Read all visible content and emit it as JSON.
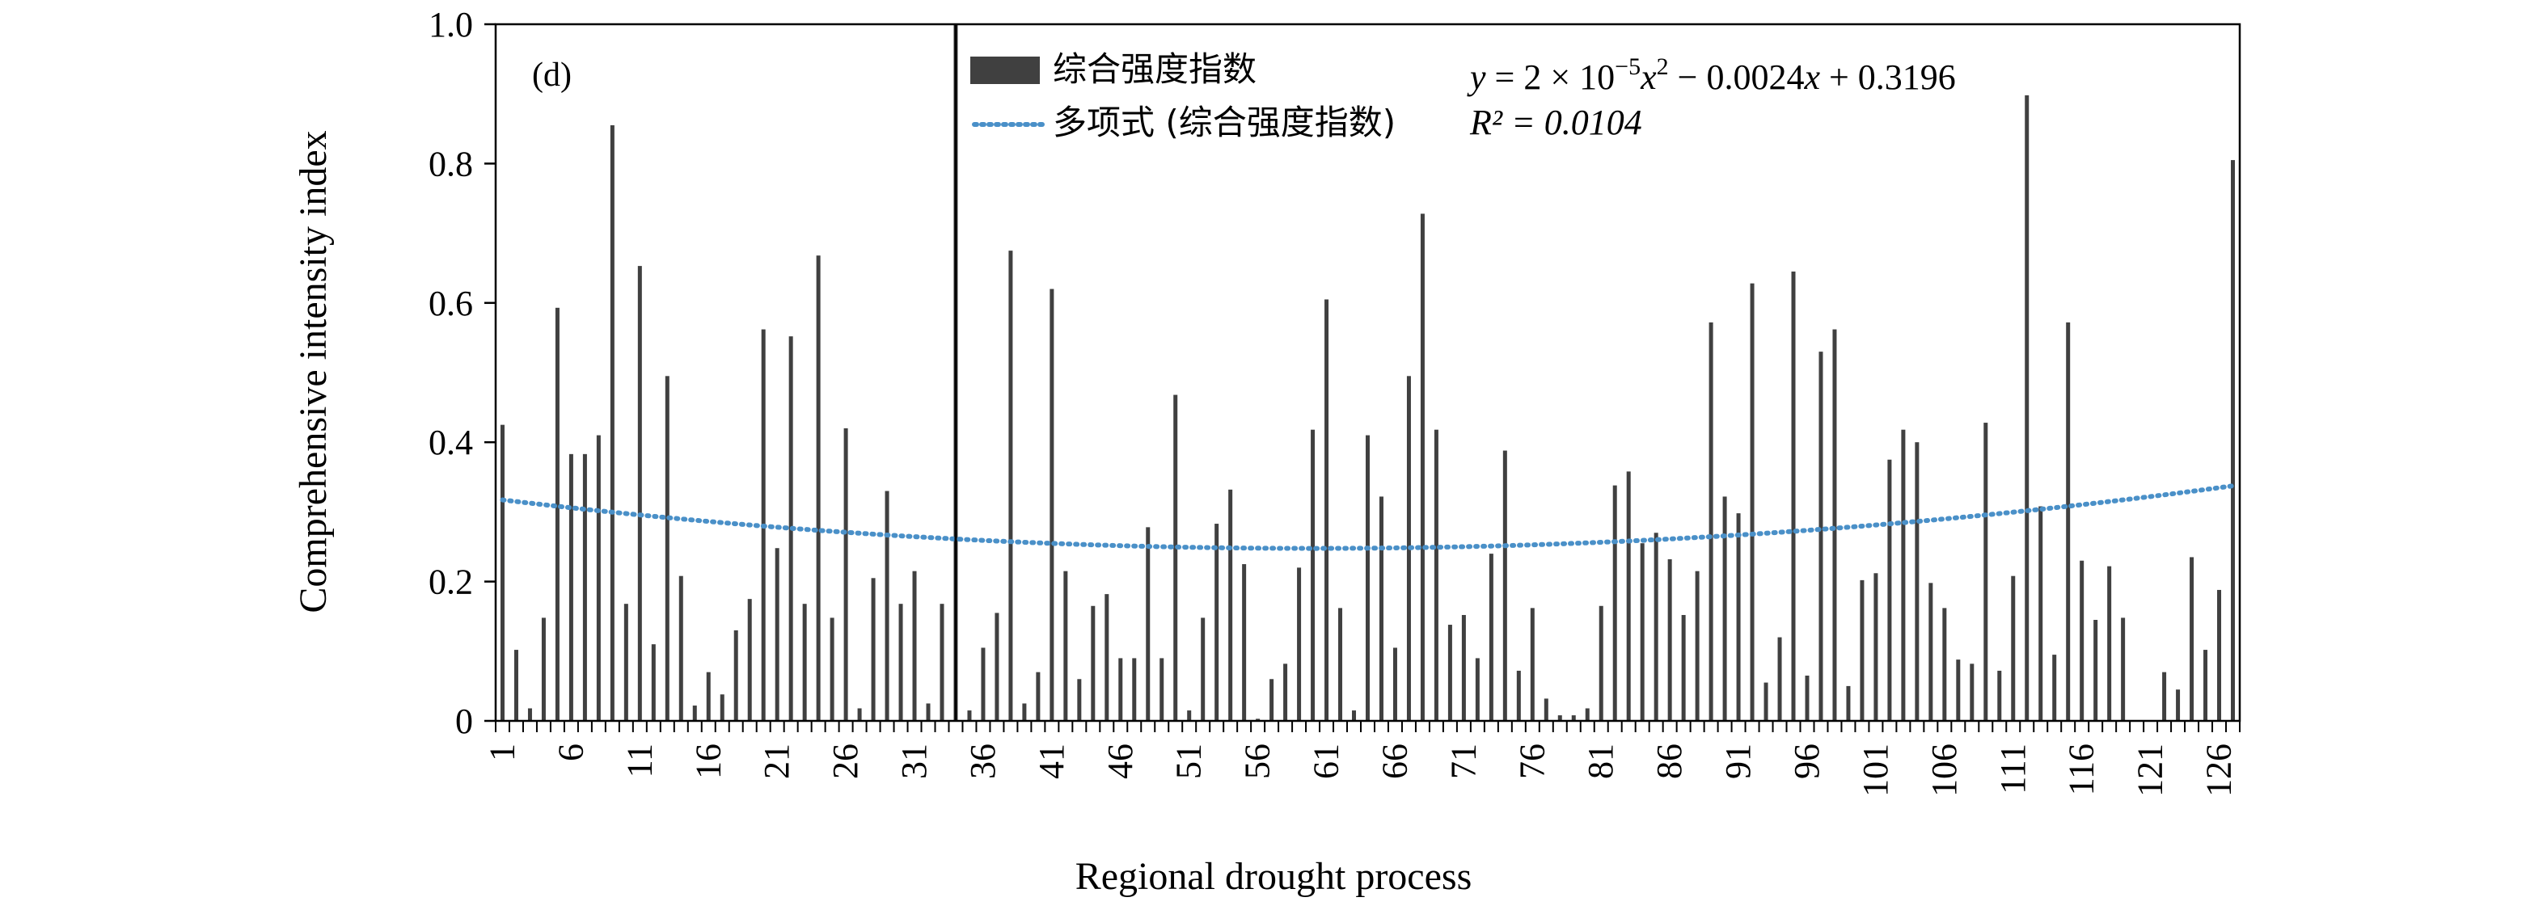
{
  "chart_data": {
    "type": "bar",
    "panel_label": "(d)",
    "xlabel": "Regional drought process",
    "ylabel": "Comprehensive intensity index",
    "ylim": [
      0,
      1.0
    ],
    "yticks": [
      "0",
      "0.2",
      "0.4",
      "0.6",
      "0.8",
      "1.0"
    ],
    "ytick_values": [
      0,
      0.2,
      0.4,
      0.6,
      0.8,
      1.0
    ],
    "xticks": [
      "1",
      "6",
      "11",
      "16",
      "21",
      "26",
      "31",
      "36",
      "41",
      "46",
      "51",
      "56",
      "61",
      "66",
      "71",
      "76",
      "81",
      "86",
      "91",
      "96",
      "101",
      "106",
      "111",
      "116",
      "121",
      "126"
    ],
    "x_count": 127,
    "grid": false,
    "legend_position": "top-center",
    "reference_line_x": 34,
    "series": [
      {
        "name": "综合强度指数",
        "type": "bar",
        "color": "#404040",
        "values": [
          0.425,
          0.102,
          0.018,
          0.148,
          0.593,
          0.383,
          0.383,
          0.41,
          0.855,
          0.168,
          0.653,
          0.11,
          0.495,
          0.208,
          0.022,
          0.07,
          0.038,
          0.13,
          0.175,
          0.562,
          0.248,
          0.552,
          0.168,
          0.668,
          0.148,
          0.42,
          0.018,
          0.205,
          0.33,
          0.168,
          0.215,
          0.025,
          0.168,
          1.0,
          0.015,
          0.105,
          0.155,
          0.675,
          0.025,
          0.07,
          0.62,
          0.215,
          0.06,
          0.165,
          0.182,
          0.09,
          0.09,
          0.278,
          0.09,
          0.468,
          0.015,
          0.148,
          0.283,
          0.332,
          0.225,
          0.003,
          0.06,
          0.082,
          0.22,
          0.418,
          0.605,
          0.162,
          0.015,
          0.41,
          0.322,
          0.105,
          0.495,
          0.728,
          0.418,
          0.138,
          0.152,
          0.09,
          0.24,
          0.388,
          0.072,
          0.162,
          0.032,
          0.008,
          0.008,
          0.018,
          0.165,
          0.338,
          0.358,
          0.255,
          0.27,
          0.232,
          0.152,
          0.215,
          0.572,
          0.322,
          0.298,
          0.628,
          0.055,
          0.12,
          0.645,
          0.065,
          0.53,
          0.562,
          0.05,
          0.202,
          0.212,
          0.375,
          0.418,
          0.4,
          0.198,
          0.162,
          0.088,
          0.082,
          0.428,
          0.072,
          0.208,
          0.898,
          0.308,
          0.095,
          0.572,
          0.23,
          0.145,
          0.222,
          0.148,
          0.0,
          0.0,
          0.07,
          0.045,
          0.235,
          0.102,
          0.188,
          0.805
        ]
      },
      {
        "name": "多项式 (综合强度指数)",
        "type": "polynomial-trendline",
        "color": "#4a90c8",
        "coefficients": [
          2e-05,
          -0.0024,
          0.3196
        ]
      }
    ],
    "annotations": {
      "equation_prefix": "y",
      "equation_body": " = 2 × 10",
      "equation_exp": "−5",
      "equation_var": "x",
      "equation_sq": "2",
      "equation_rest": " − 0.0024",
      "equation_var2": "x",
      "equation_end": " + 0.3196",
      "r2": "R² = 0.0104"
    }
  }
}
